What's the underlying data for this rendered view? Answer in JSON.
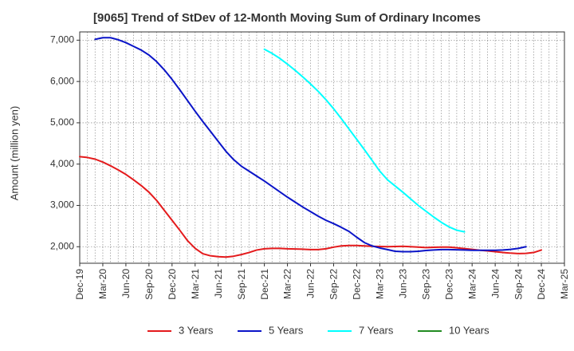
{
  "chart_data": {
    "type": "line",
    "title": "[9065]  Trend of StDev of 12-Month Moving Sum of Ordinary Incomes",
    "xlabel": "",
    "ylabel": "Amount (million yen)",
    "ylim": [
      1600,
      7200
    ],
    "y_ticks": [
      2000,
      3000,
      4000,
      5000,
      6000,
      7000
    ],
    "y_tick_labels": [
      "2,000",
      "3,000",
      "4,000",
      "5,000",
      "6,000",
      "7,000"
    ],
    "x_ticks": [
      "2019-12",
      "2020-03",
      "2020-06",
      "2020-09",
      "2020-12",
      "2021-03",
      "2021-06",
      "2021-09",
      "2021-12",
      "2022-03",
      "2022-06",
      "2022-09",
      "2022-12",
      "2023-03",
      "2023-06",
      "2023-09",
      "2023-12",
      "2024-03",
      "2024-06",
      "2024-09",
      "2024-12",
      "2025-03"
    ],
    "x_tick_labels": [
      "Dec-19",
      "Mar-20",
      "Jun-20",
      "Sep-20",
      "Dec-20",
      "Mar-21",
      "Jun-21",
      "Sep-21",
      "Dec-21",
      "Mar-22",
      "Jun-22",
      "Sep-22",
      "Dec-22",
      "Mar-23",
      "Jun-23",
      "Sep-23",
      "Dec-23",
      "Mar-24",
      "Jun-24",
      "Sep-24",
      "Dec-24",
      "Mar-25"
    ],
    "grid": true,
    "legend_position": "bottom",
    "series": [
      {
        "name": "3 Years",
        "color": "#e41a1c",
        "points": [
          [
            "2019-12",
            4180
          ],
          [
            "2020-01",
            4160
          ],
          [
            "2020-02",
            4120
          ],
          [
            "2020-03",
            4050
          ],
          [
            "2020-04",
            3960
          ],
          [
            "2020-05",
            3860
          ],
          [
            "2020-06",
            3750
          ],
          [
            "2020-07",
            3620
          ],
          [
            "2020-08",
            3480
          ],
          [
            "2020-09",
            3320
          ],
          [
            "2020-10",
            3120
          ],
          [
            "2020-11",
            2880
          ],
          [
            "2020-12",
            2640
          ],
          [
            "2021-01",
            2400
          ],
          [
            "2021-02",
            2150
          ],
          [
            "2021-03",
            1960
          ],
          [
            "2021-04",
            1830
          ],
          [
            "2021-05",
            1780
          ],
          [
            "2021-06",
            1760
          ],
          [
            "2021-07",
            1750
          ],
          [
            "2021-08",
            1770
          ],
          [
            "2021-09",
            1810
          ],
          [
            "2021-10",
            1860
          ],
          [
            "2021-11",
            1920
          ],
          [
            "2021-12",
            1950
          ],
          [
            "2022-01",
            1960
          ],
          [
            "2022-02",
            1960
          ],
          [
            "2022-03",
            1950
          ],
          [
            "2022-04",
            1945
          ],
          [
            "2022-05",
            1940
          ],
          [
            "2022-06",
            1930
          ],
          [
            "2022-07",
            1930
          ],
          [
            "2022-08",
            1950
          ],
          [
            "2022-09",
            1990
          ],
          [
            "2022-10",
            2020
          ],
          [
            "2022-11",
            2030
          ],
          [
            "2022-12",
            2030
          ],
          [
            "2023-01",
            2020
          ],
          [
            "2023-02",
            2010
          ],
          [
            "2023-03",
            2005
          ],
          [
            "2023-04",
            2000
          ],
          [
            "2023-05",
            2005
          ],
          [
            "2023-06",
            2010
          ],
          [
            "2023-07",
            2000
          ],
          [
            "2023-08",
            1990
          ],
          [
            "2023-09",
            1980
          ],
          [
            "2023-10",
            1985
          ],
          [
            "2023-11",
            1990
          ],
          [
            "2023-12",
            1990
          ],
          [
            "2024-01",
            1975
          ],
          [
            "2024-02",
            1955
          ],
          [
            "2024-03",
            1935
          ],
          [
            "2024-04",
            1915
          ],
          [
            "2024-05",
            1900
          ],
          [
            "2024-06",
            1880
          ],
          [
            "2024-07",
            1860
          ],
          [
            "2024-08",
            1845
          ],
          [
            "2024-09",
            1835
          ],
          [
            "2024-10",
            1840
          ],
          [
            "2024-11",
            1860
          ],
          [
            "2024-12",
            1920
          ]
        ]
      },
      {
        "name": "5 Years",
        "color": "#0a14c8",
        "points": [
          [
            "2020-02",
            7020
          ],
          [
            "2020-03",
            7060
          ],
          [
            "2020-04",
            7060
          ],
          [
            "2020-05",
            7010
          ],
          [
            "2020-06",
            6940
          ],
          [
            "2020-07",
            6850
          ],
          [
            "2020-08",
            6760
          ],
          [
            "2020-09",
            6640
          ],
          [
            "2020-10",
            6480
          ],
          [
            "2020-11",
            6280
          ],
          [
            "2020-12",
            6050
          ],
          [
            "2021-01",
            5800
          ],
          [
            "2021-02",
            5540
          ],
          [
            "2021-03",
            5280
          ],
          [
            "2021-04",
            5030
          ],
          [
            "2021-05",
            4790
          ],
          [
            "2021-06",
            4550
          ],
          [
            "2021-07",
            4310
          ],
          [
            "2021-08",
            4110
          ],
          [
            "2021-09",
            3950
          ],
          [
            "2021-10",
            3830
          ],
          [
            "2021-11",
            3710
          ],
          [
            "2021-12",
            3590
          ],
          [
            "2022-01",
            3460
          ],
          [
            "2022-02",
            3330
          ],
          [
            "2022-03",
            3200
          ],
          [
            "2022-04",
            3080
          ],
          [
            "2022-05",
            2960
          ],
          [
            "2022-06",
            2850
          ],
          [
            "2022-07",
            2740
          ],
          [
            "2022-08",
            2640
          ],
          [
            "2022-09",
            2560
          ],
          [
            "2022-10",
            2470
          ],
          [
            "2022-11",
            2370
          ],
          [
            "2022-12",
            2230
          ],
          [
            "2023-01",
            2100
          ],
          [
            "2023-02",
            2020
          ],
          [
            "2023-03",
            1970
          ],
          [
            "2023-04",
            1930
          ],
          [
            "2023-05",
            1890
          ],
          [
            "2023-06",
            1880
          ],
          [
            "2023-07",
            1880
          ],
          [
            "2023-08",
            1890
          ],
          [
            "2023-09",
            1910
          ],
          [
            "2023-10",
            1920
          ],
          [
            "2023-11",
            1930
          ],
          [
            "2023-12",
            1930
          ],
          [
            "2024-01",
            1925
          ],
          [
            "2024-02",
            1920
          ],
          [
            "2024-03",
            1915
          ],
          [
            "2024-04",
            1915
          ],
          [
            "2024-05",
            1915
          ],
          [
            "2024-06",
            1915
          ],
          [
            "2024-07",
            1920
          ],
          [
            "2024-08",
            1935
          ],
          [
            "2024-09",
            1960
          ],
          [
            "2024-10",
            2000
          ]
        ]
      },
      {
        "name": "7 Years",
        "color": "#00ffff",
        "points": [
          [
            "2021-12",
            6780
          ],
          [
            "2022-01",
            6680
          ],
          [
            "2022-02",
            6560
          ],
          [
            "2022-03",
            6420
          ],
          [
            "2022-04",
            6270
          ],
          [
            "2022-05",
            6110
          ],
          [
            "2022-06",
            5940
          ],
          [
            "2022-07",
            5760
          ],
          [
            "2022-08",
            5560
          ],
          [
            "2022-09",
            5340
          ],
          [
            "2022-10",
            5100
          ],
          [
            "2022-11",
            4850
          ],
          [
            "2022-12",
            4600
          ],
          [
            "2023-01",
            4350
          ],
          [
            "2023-02",
            4090
          ],
          [
            "2023-03",
            3830
          ],
          [
            "2023-04",
            3620
          ],
          [
            "2023-05",
            3470
          ],
          [
            "2023-06",
            3320
          ],
          [
            "2023-07",
            3160
          ],
          [
            "2023-08",
            3000
          ],
          [
            "2023-09",
            2860
          ],
          [
            "2023-10",
            2720
          ],
          [
            "2023-11",
            2590
          ],
          [
            "2023-12",
            2480
          ],
          [
            "2024-01",
            2400
          ],
          [
            "2024-02",
            2360
          ]
        ]
      },
      {
        "name": "10 Years",
        "color": "#228b22",
        "points": []
      }
    ]
  }
}
